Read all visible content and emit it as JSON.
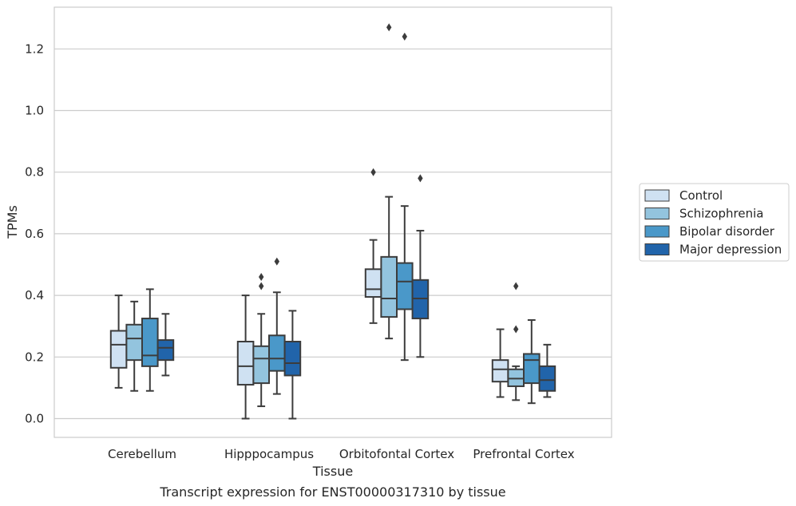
{
  "chart_data": {
    "type": "boxplot",
    "caption": "Transcript expression for ENST00000317310 by tissue",
    "xlabel": "Tissue",
    "ylabel": "TPMs",
    "ylim": [
      -0.06,
      1.34
    ],
    "yticks": [
      0.0,
      0.2,
      0.4,
      0.6,
      0.8,
      1.0,
      1.2
    ],
    "ytick_labels": [
      "0.0",
      "0.2",
      "0.4",
      "0.6",
      "0.8",
      "1.0",
      "1.2"
    ],
    "grid": true,
    "legend_position": "right",
    "categories": [
      "Cerebellum",
      "Hipppocampus",
      "Orbitofontal Cortex",
      "Prefrontal Cortex"
    ],
    "series": [
      {
        "name": "Control",
        "color": "#cfe1f2",
        "boxes": [
          {
            "whislo": 0.1,
            "q1": 0.165,
            "med": 0.24,
            "q3": 0.285,
            "whishi": 0.4,
            "fliers": []
          },
          {
            "whislo": 0.0,
            "q1": 0.11,
            "med": 0.17,
            "q3": 0.25,
            "whishi": 0.4,
            "fliers": []
          },
          {
            "whislo": 0.31,
            "q1": 0.395,
            "med": 0.42,
            "q3": 0.485,
            "whishi": 0.58,
            "fliers": [
              0.8
            ]
          },
          {
            "whislo": 0.07,
            "q1": 0.12,
            "med": 0.16,
            "q3": 0.19,
            "whishi": 0.29,
            "fliers": []
          }
        ]
      },
      {
        "name": "Schizophrenia",
        "color": "#93c4de",
        "boxes": [
          {
            "whislo": 0.09,
            "q1": 0.19,
            "med": 0.26,
            "q3": 0.305,
            "whishi": 0.38,
            "fliers": []
          },
          {
            "whislo": 0.04,
            "q1": 0.115,
            "med": 0.195,
            "q3": 0.235,
            "whishi": 0.34,
            "fliers": [
              0.43,
              0.46
            ]
          },
          {
            "whislo": 0.26,
            "q1": 0.33,
            "med": 0.39,
            "q3": 0.525,
            "whishi": 0.72,
            "fliers": [
              1.27
            ]
          },
          {
            "whislo": 0.06,
            "q1": 0.105,
            "med": 0.13,
            "q3": 0.16,
            "whishi": 0.17,
            "fliers": [
              0.29,
              0.43
            ]
          }
        ]
      },
      {
        "name": "Bipolar disorder",
        "color": "#4a98c9",
        "boxes": [
          {
            "whislo": 0.09,
            "q1": 0.17,
            "med": 0.205,
            "q3": 0.325,
            "whishi": 0.42,
            "fliers": []
          },
          {
            "whislo": 0.08,
            "q1": 0.155,
            "med": 0.195,
            "q3": 0.27,
            "whishi": 0.41,
            "fliers": [
              0.51
            ]
          },
          {
            "whislo": 0.19,
            "q1": 0.355,
            "med": 0.445,
            "q3": 0.505,
            "whishi": 0.69,
            "fliers": [
              1.24
            ]
          },
          {
            "whislo": 0.05,
            "q1": 0.115,
            "med": 0.19,
            "q3": 0.21,
            "whishi": 0.32,
            "fliers": []
          }
        ]
      },
      {
        "name": "Major depression",
        "color": "#2164aa",
        "boxes": [
          {
            "whislo": 0.14,
            "q1": 0.19,
            "med": 0.23,
            "q3": 0.255,
            "whishi": 0.34,
            "fliers": []
          },
          {
            "whislo": 0.0,
            "q1": 0.14,
            "med": 0.18,
            "q3": 0.25,
            "whishi": 0.35,
            "fliers": []
          },
          {
            "whislo": 0.2,
            "q1": 0.325,
            "med": 0.39,
            "q3": 0.45,
            "whishi": 0.61,
            "fliers": [
              0.78
            ]
          },
          {
            "whislo": 0.07,
            "q1": 0.09,
            "med": 0.125,
            "q3": 0.17,
            "whishi": 0.24,
            "fliers": []
          }
        ]
      }
    ]
  }
}
